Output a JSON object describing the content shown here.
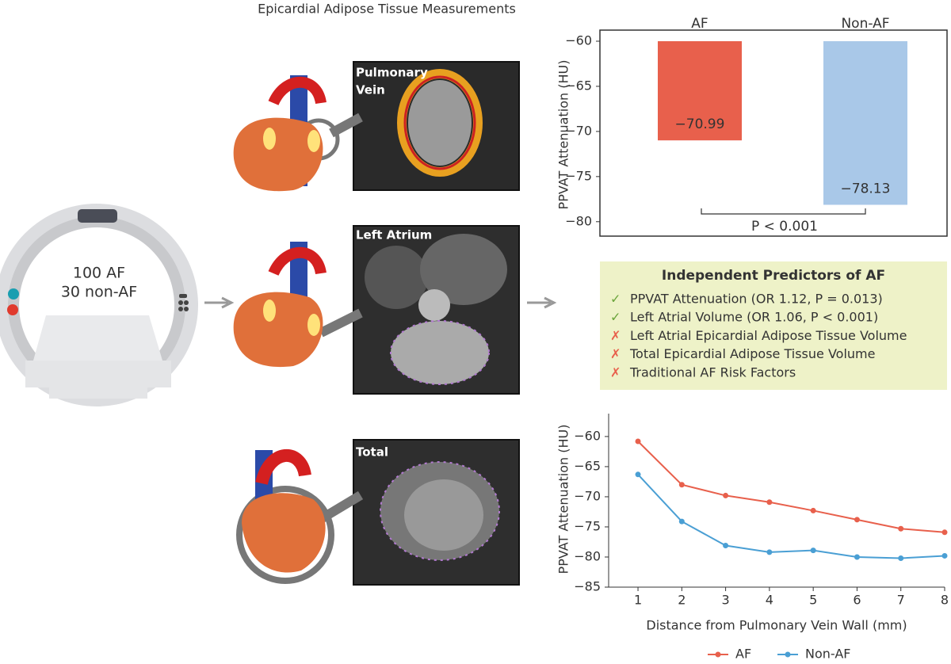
{
  "header": {
    "title": "Epicardial Adipose Tissue Measurements"
  },
  "scanner": {
    "lines": [
      "100 AF",
      "30 non-AF"
    ]
  },
  "panels": [
    {
      "label": [
        "Pulmonary",
        "Vein"
      ]
    },
    {
      "label": [
        "Left Atrium"
      ]
    },
    {
      "label": [
        "Total"
      ]
    }
  ],
  "predictors": {
    "title": "Independent Predictors of AF",
    "items": [
      {
        "symbol": "✓",
        "text": "PPVAT Attenuation (OR 1.12, P = 0.013)"
      },
      {
        "symbol": "✓",
        "text": "Left Atrial Volume (OR 1.06, P < 0.001)"
      },
      {
        "symbol": "✗",
        "text": "Left Atrial Epicardial Adipose Tissue Volume"
      },
      {
        "symbol": "✗",
        "text": "Total Epicardial Adipose Tissue Volume"
      },
      {
        "symbol": "✗",
        "text": "Traditional AF Risk Factors"
      }
    ]
  },
  "chart_data": [
    {
      "type": "bar",
      "categories": [
        "AF",
        "Non-AF"
      ],
      "values": [
        -70.99,
        -78.13
      ],
      "value_labels": [
        "−70.99",
        "−78.13"
      ],
      "colors": [
        "#e8604c",
        "#a9c8e8"
      ],
      "ylabel": "PPVAT Attenuation (HU)",
      "ylim": [
        -81.6,
        -60
      ],
      "yticks": [
        {
          "value": -60,
          "label": "−60"
        },
        {
          "value": -65,
          "label": "−65"
        },
        {
          "value": -70,
          "label": "−70"
        },
        {
          "value": -75,
          "label": "−75"
        },
        {
          "value": -80,
          "label": "−80"
        }
      ],
      "annotation": "P < 0.001"
    },
    {
      "type": "line",
      "x": [
        1,
        2,
        3,
        4,
        5,
        6,
        7,
        8
      ],
      "series": [
        {
          "name": "AF",
          "color": "#e8604c",
          "values": [
            -60.8,
            -68.0,
            -69.8,
            -70.9,
            -72.3,
            -73.8,
            -75.3,
            -75.9
          ]
        },
        {
          "name": "Non-AF",
          "color": "#4a9fd4",
          "values": [
            -66.3,
            -74.1,
            -78.1,
            -79.2,
            -78.9,
            -80.0,
            -80.2,
            -79.8
          ]
        }
      ],
      "xlabel": "Distance from Pulmonary Vein Wall (mm)",
      "ylabel": "PPVAT Attenuation (HU)",
      "xlim": [
        0.33,
        8
      ],
      "xticks": [
        1,
        2,
        3,
        4,
        5,
        6,
        7,
        8
      ],
      "ylim": [
        -85,
        -56.2
      ],
      "yticks": [
        {
          "value": -60,
          "label": "−60"
        },
        {
          "value": -65,
          "label": "−65"
        },
        {
          "value": -70,
          "label": "−70"
        },
        {
          "value": -75,
          "label": "−75"
        },
        {
          "value": -80,
          "label": "−80"
        },
        {
          "value": -85,
          "label": "−85"
        }
      ],
      "legend": "bottom"
    }
  ]
}
